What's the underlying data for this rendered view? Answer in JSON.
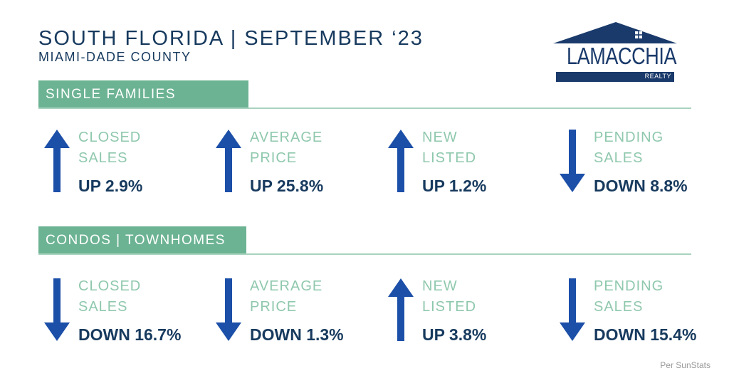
{
  "header": {
    "title": "SOUTH FLORIDA | SEPTEMBER ‘23",
    "subtitle": "MIAMI-DADE COUNTY"
  },
  "logo": {
    "name": "LAMACCHIA",
    "tagline": "REALTY",
    "color": "#1a3a6b"
  },
  "colors": {
    "accent": "#6cb393",
    "arrow": "#1c4fa8",
    "text_dark": "#173a5e",
    "label": "#8fc8ad"
  },
  "sections": [
    {
      "label": "SINGLE FAMILIES",
      "stats": [
        {
          "label_line1": "CLOSED",
          "label_line2": "SALES",
          "value": "UP 2.9%",
          "direction": "up"
        },
        {
          "label_line1": "AVERAGE",
          "label_line2": "PRICE",
          "value": "UP 25.8%",
          "direction": "up"
        },
        {
          "label_line1": "NEW",
          "label_line2": "LISTED",
          "value": "UP 1.2%",
          "direction": "up"
        },
        {
          "label_line1": "PENDING",
          "label_line2": "SALES",
          "value": "DOWN 8.8%",
          "direction": "down"
        }
      ]
    },
    {
      "label": "CONDOS | TOWNHOMES",
      "stats": [
        {
          "label_line1": "CLOSED",
          "label_line2": "SALES",
          "value": "DOWN 16.7%",
          "direction": "down"
        },
        {
          "label_line1": "AVERAGE",
          "label_line2": "PRICE",
          "value": "DOWN 1.3%",
          "direction": "down"
        },
        {
          "label_line1": "NEW",
          "label_line2": "LISTED",
          "value": "UP 3.8%",
          "direction": "up"
        },
        {
          "label_line1": "PENDING",
          "label_line2": "SALES",
          "value": "DOWN 15.4%",
          "direction": "down"
        }
      ]
    }
  ],
  "footer": {
    "source": "Per SunStats"
  }
}
